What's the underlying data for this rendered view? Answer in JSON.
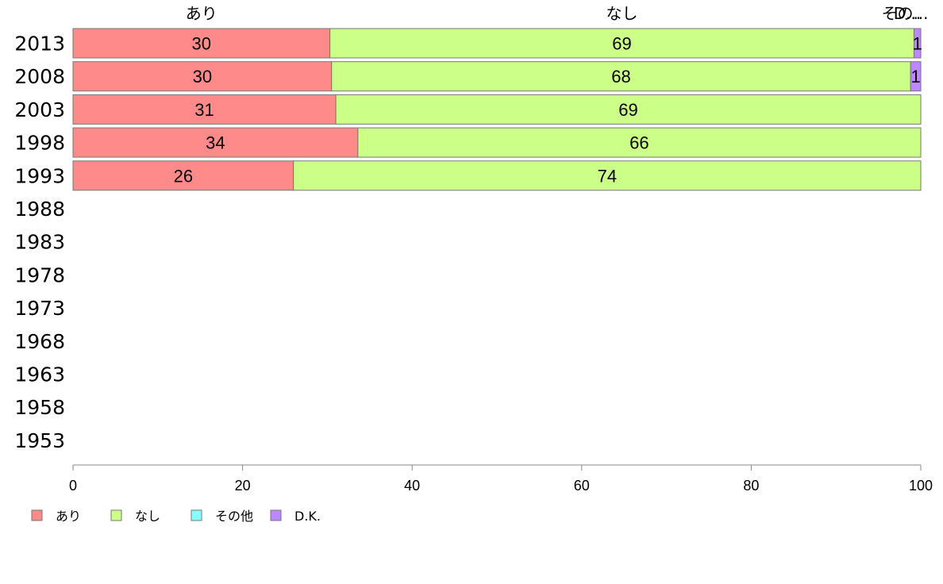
{
  "chart_data": {
    "type": "bar",
    "orientation": "horizontal",
    "stacked": true,
    "categories": [
      "2013",
      "2008",
      "2003",
      "1998",
      "1993",
      "1988",
      "1983",
      "1978",
      "1973",
      "1968",
      "1963",
      "1958",
      "1953"
    ],
    "series": [
      {
        "name": "あり",
        "color": "#ff8a8a",
        "values": [
          30.3,
          30.5,
          31,
          33.6,
          26,
          null,
          null,
          null,
          null,
          null,
          null,
          null,
          null
        ],
        "labels": [
          "30",
          "30",
          "31",
          "34",
          "26",
          "",
          "",
          "",
          "",
          "",
          "",
          "",
          ""
        ]
      },
      {
        "name": "なし",
        "color": "#ccff88",
        "values": [
          68.9,
          68.3,
          69,
          66.4,
          74,
          null,
          null,
          null,
          null,
          null,
          null,
          null,
          null
        ],
        "labels": [
          "69",
          "68",
          "69",
          "66",
          "74",
          "",
          "",
          "",
          "",
          "",
          "",
          "",
          ""
        ]
      },
      {
        "name": "その他",
        "color": "#88ffff",
        "values": [
          0,
          0,
          0,
          0,
          0,
          null,
          null,
          null,
          null,
          null,
          null,
          null,
          null
        ],
        "labels": [
          "",
          "",
          "",
          "",
          "",
          "",
          "",
          "",
          "",
          "",
          "",
          "",
          ""
        ]
      },
      {
        "name": "D.K.",
        "color": "#bb88ff",
        "values": [
          0.8,
          1.2,
          0,
          0,
          0,
          null,
          null,
          null,
          null,
          null,
          null,
          null,
          null
        ],
        "labels": [
          "1",
          "1",
          "",
          "",
          "",
          "",
          "",
          "",
          "",
          "",
          "",
          "",
          ""
        ]
      }
    ],
    "top_labels": [
      "あり",
      "なし",
      "その...",
      "D..."
    ],
    "xlim": [
      0,
      100
    ],
    "xticks": [
      "0",
      "20",
      "40",
      "60",
      "80",
      "100"
    ],
    "grid": false,
    "legend_position": "bottom-left"
  }
}
